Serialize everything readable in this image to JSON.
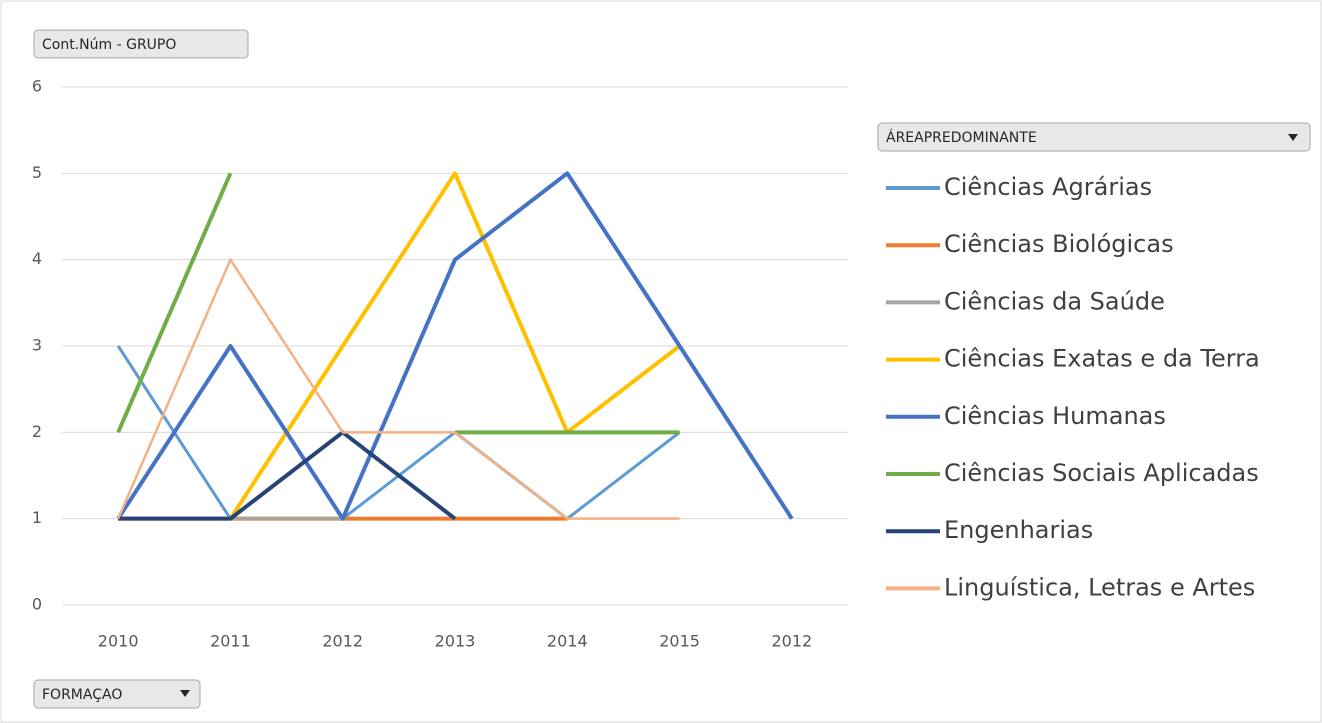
{
  "value_field": "Cont.Núm - GRUPO",
  "axis_field": "FORMAÇAO",
  "legend_title": "ÁREAPREDOMINANTE",
  "chart_data": {
    "type": "line",
    "categories": [
      "2010",
      "2011",
      "2012",
      "2013",
      "2014",
      "2015",
      "2012"
    ],
    "ylim": [
      0,
      6
    ],
    "yticks": [
      0,
      1,
      2,
      3,
      4,
      5,
      6
    ],
    "grid": true,
    "legend": "right",
    "series": [
      {
        "name": "Ciências Agrárias",
        "color": "#5b9bd5",
        "values": [
          3,
          1,
          1,
          2,
          1,
          2,
          null
        ]
      },
      {
        "name": "Ciências Biológicas",
        "color": "#ed7d31",
        "values": [
          1,
          1,
          1,
          1,
          1,
          null,
          null
        ]
      },
      {
        "name": "Ciências da Saúde",
        "color": "#a5a5a5",
        "values": [
          1,
          1,
          1,
          null,
          null,
          null,
          null
        ]
      },
      {
        "name": "Ciências Exatas e da Terra",
        "color": "#ffc000",
        "values": [
          null,
          1,
          3,
          5,
          2,
          3,
          null
        ]
      },
      {
        "name": "Ciências Humanas",
        "color": "#4472c4",
        "values": [
          1,
          3,
          1,
          4,
          5,
          3,
          1
        ]
      },
      {
        "name": "Ciências Sociais Aplicadas",
        "color": "#70ad47",
        "values": [
          2,
          5,
          null,
          2,
          2,
          2,
          null
        ]
      },
      {
        "name": "Engenharias",
        "color": "#264478",
        "values": [
          1,
          1,
          2,
          1,
          null,
          null,
          null
        ]
      },
      {
        "name": "Linguística, Letras e Artes",
        "color": "#f4b183",
        "values": [
          1,
          4,
          2,
          2,
          1,
          1,
          null
        ]
      }
    ]
  }
}
